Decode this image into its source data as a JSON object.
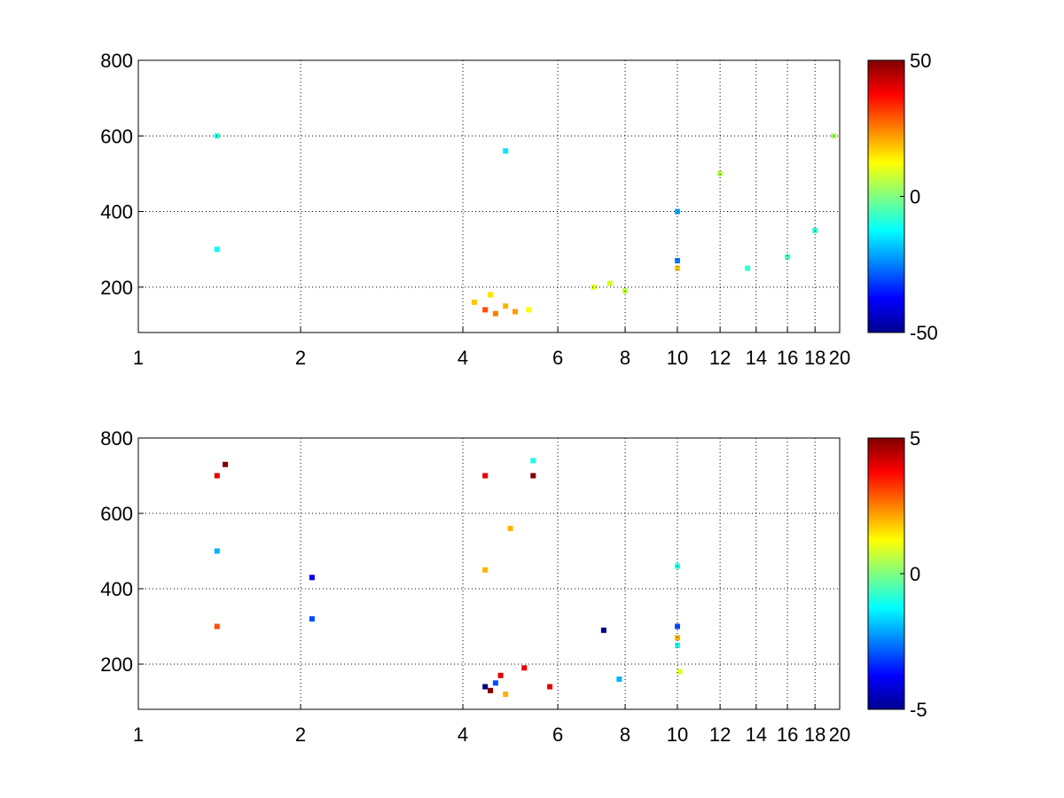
{
  "chart_data": [
    {
      "type": "heatmap",
      "title": "",
      "xlabel": "",
      "ylabel": "",
      "x_scale": "log",
      "xlim": [
        1,
        20
      ],
      "ylim": [
        80,
        800
      ],
      "xticks": [
        1,
        2,
        4,
        6,
        8,
        10,
        12,
        14,
        16,
        18,
        20
      ],
      "yticks": [
        200,
        400,
        600,
        800
      ],
      "grid": true,
      "colorbar": {
        "colormap": "jet",
        "min": -50,
        "max": 50,
        "ticks": [
          -50,
          0,
          50
        ]
      },
      "description": "sparse scattered cells across the whole plane; dense cluster near x 4-5.5, y 100-200; strong vertical streaks near x 1.4, 4.3, 10",
      "cells": [
        {
          "x": 4.4,
          "y": 140,
          "v": 30
        },
        {
          "x": 4.6,
          "y": 130,
          "v": 25
        },
        {
          "x": 4.8,
          "y": 150,
          "v": 20
        },
        {
          "x": 4.2,
          "y": 160,
          "v": 18
        },
        {
          "x": 5.0,
          "y": 135,
          "v": 22
        },
        {
          "x": 4.5,
          "y": 180,
          "v": 15
        },
        {
          "x": 5.3,
          "y": 140,
          "v": 12
        },
        {
          "x": 7.0,
          "y": 200,
          "v": 10
        },
        {
          "x": 7.5,
          "y": 210,
          "v": 8
        },
        {
          "x": 8.0,
          "y": 190,
          "v": 6
        },
        {
          "x": 10.0,
          "y": 400,
          "v": -20
        },
        {
          "x": 10.0,
          "y": 270,
          "v": -25
        },
        {
          "x": 10.0,
          "y": 250,
          "v": 18
        },
        {
          "x": 1.4,
          "y": 600,
          "v": -10
        },
        {
          "x": 1.4,
          "y": 300,
          "v": -12
        },
        {
          "x": 4.8,
          "y": 560,
          "v": -15
        },
        {
          "x": 12.0,
          "y": 500,
          "v": 5
        },
        {
          "x": 13.5,
          "y": 250,
          "v": -8
        },
        {
          "x": 16.0,
          "y": 280,
          "v": -6
        },
        {
          "x": 18.0,
          "y": 350,
          "v": -8
        },
        {
          "x": 19.5,
          "y": 600,
          "v": 4
        }
      ]
    },
    {
      "type": "heatmap",
      "title": "",
      "xlabel": "",
      "ylabel": "",
      "x_scale": "log",
      "xlim": [
        1,
        20
      ],
      "ylim": [
        80,
        800
      ],
      "xticks": [
        1,
        2,
        4,
        6,
        8,
        10,
        12,
        14,
        16,
        18,
        20
      ],
      "yticks": [
        200,
        400,
        600,
        800
      ],
      "grid": true,
      "colorbar": {
        "colormap": "jet",
        "min": -5,
        "max": 5,
        "ticks": [
          -5,
          0,
          5
        ]
      },
      "description": "mostly empty; isolated streaks near x 1.4, 1.5, 2.1, 4.4, 4.9, 5.4, 7.3, 10",
      "cells": [
        {
          "x": 1.4,
          "y": 300,
          "v": 3
        },
        {
          "x": 1.4,
          "y": 500,
          "v": -2
        },
        {
          "x": 1.4,
          "y": 700,
          "v": 4
        },
        {
          "x": 1.45,
          "y": 730,
          "v": 5
        },
        {
          "x": 2.1,
          "y": 430,
          "v": -4
        },
        {
          "x": 2.1,
          "y": 320,
          "v": -3
        },
        {
          "x": 4.4,
          "y": 700,
          "v": 4
        },
        {
          "x": 4.4,
          "y": 450,
          "v": 2
        },
        {
          "x": 4.4,
          "y": 140,
          "v": -5
        },
        {
          "x": 4.5,
          "y": 130,
          "v": 5
        },
        {
          "x": 4.6,
          "y": 150,
          "v": -3
        },
        {
          "x": 4.7,
          "y": 170,
          "v": 4
        },
        {
          "x": 4.8,
          "y": 120,
          "v": 2
        },
        {
          "x": 4.9,
          "y": 560,
          "v": 2
        },
        {
          "x": 5.4,
          "y": 700,
          "v": 5
        },
        {
          "x": 5.4,
          "y": 740,
          "v": -1
        },
        {
          "x": 5.2,
          "y": 190,
          "v": 4
        },
        {
          "x": 5.8,
          "y": 140,
          "v": 4
        },
        {
          "x": 7.3,
          "y": 290,
          "v": -5
        },
        {
          "x": 7.8,
          "y": 160,
          "v": -2
        },
        {
          "x": 10.0,
          "y": 300,
          "v": -3
        },
        {
          "x": 10.0,
          "y": 270,
          "v": 2
        },
        {
          "x": 10.0,
          "y": 250,
          "v": -1
        },
        {
          "x": 10.0,
          "y": 460,
          "v": -1
        },
        {
          "x": 10.1,
          "y": 180,
          "v": 1
        }
      ]
    }
  ]
}
